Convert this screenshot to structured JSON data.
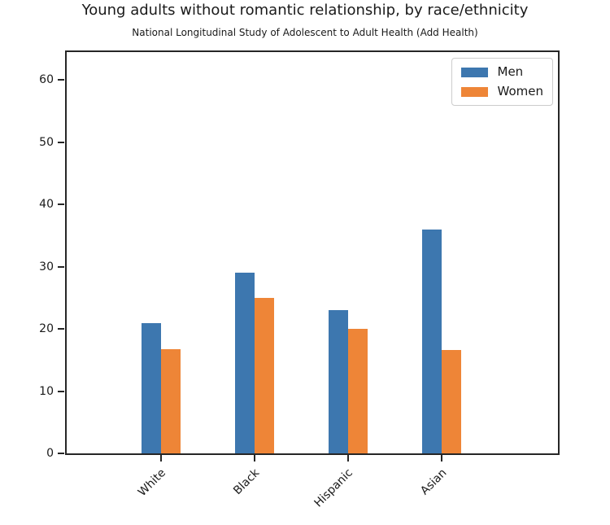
{
  "chart_data": {
    "type": "bar",
    "title": "Young adults without romantic relationship, by race/ethnicity",
    "subtitle": "National Longitudinal Study of Adolescent to Adult Health (Add Health)",
    "categories": [
      "White",
      "Black",
      "Hispanic",
      "Asian"
    ],
    "series": [
      {
        "name": "Men",
        "color": "#3d77af",
        "values": [
          21,
          29,
          23,
          36
        ]
      },
      {
        "name": "Women",
        "color": "#ee8537",
        "values": [
          16.8,
          25,
          20,
          16.6
        ]
      }
    ],
    "xlabel": "",
    "ylabel": "",
    "ylim": [
      0,
      64.5
    ],
    "yticks": [
      0,
      10,
      20,
      30,
      40,
      50,
      60
    ],
    "x_tick_rotation": 45,
    "grid": false,
    "legend_position": "upper right",
    "colors": {
      "axis": "#262626",
      "text": "#1a1a1a",
      "background": "#ffffff",
      "legend_border": "#cccccc"
    }
  }
}
